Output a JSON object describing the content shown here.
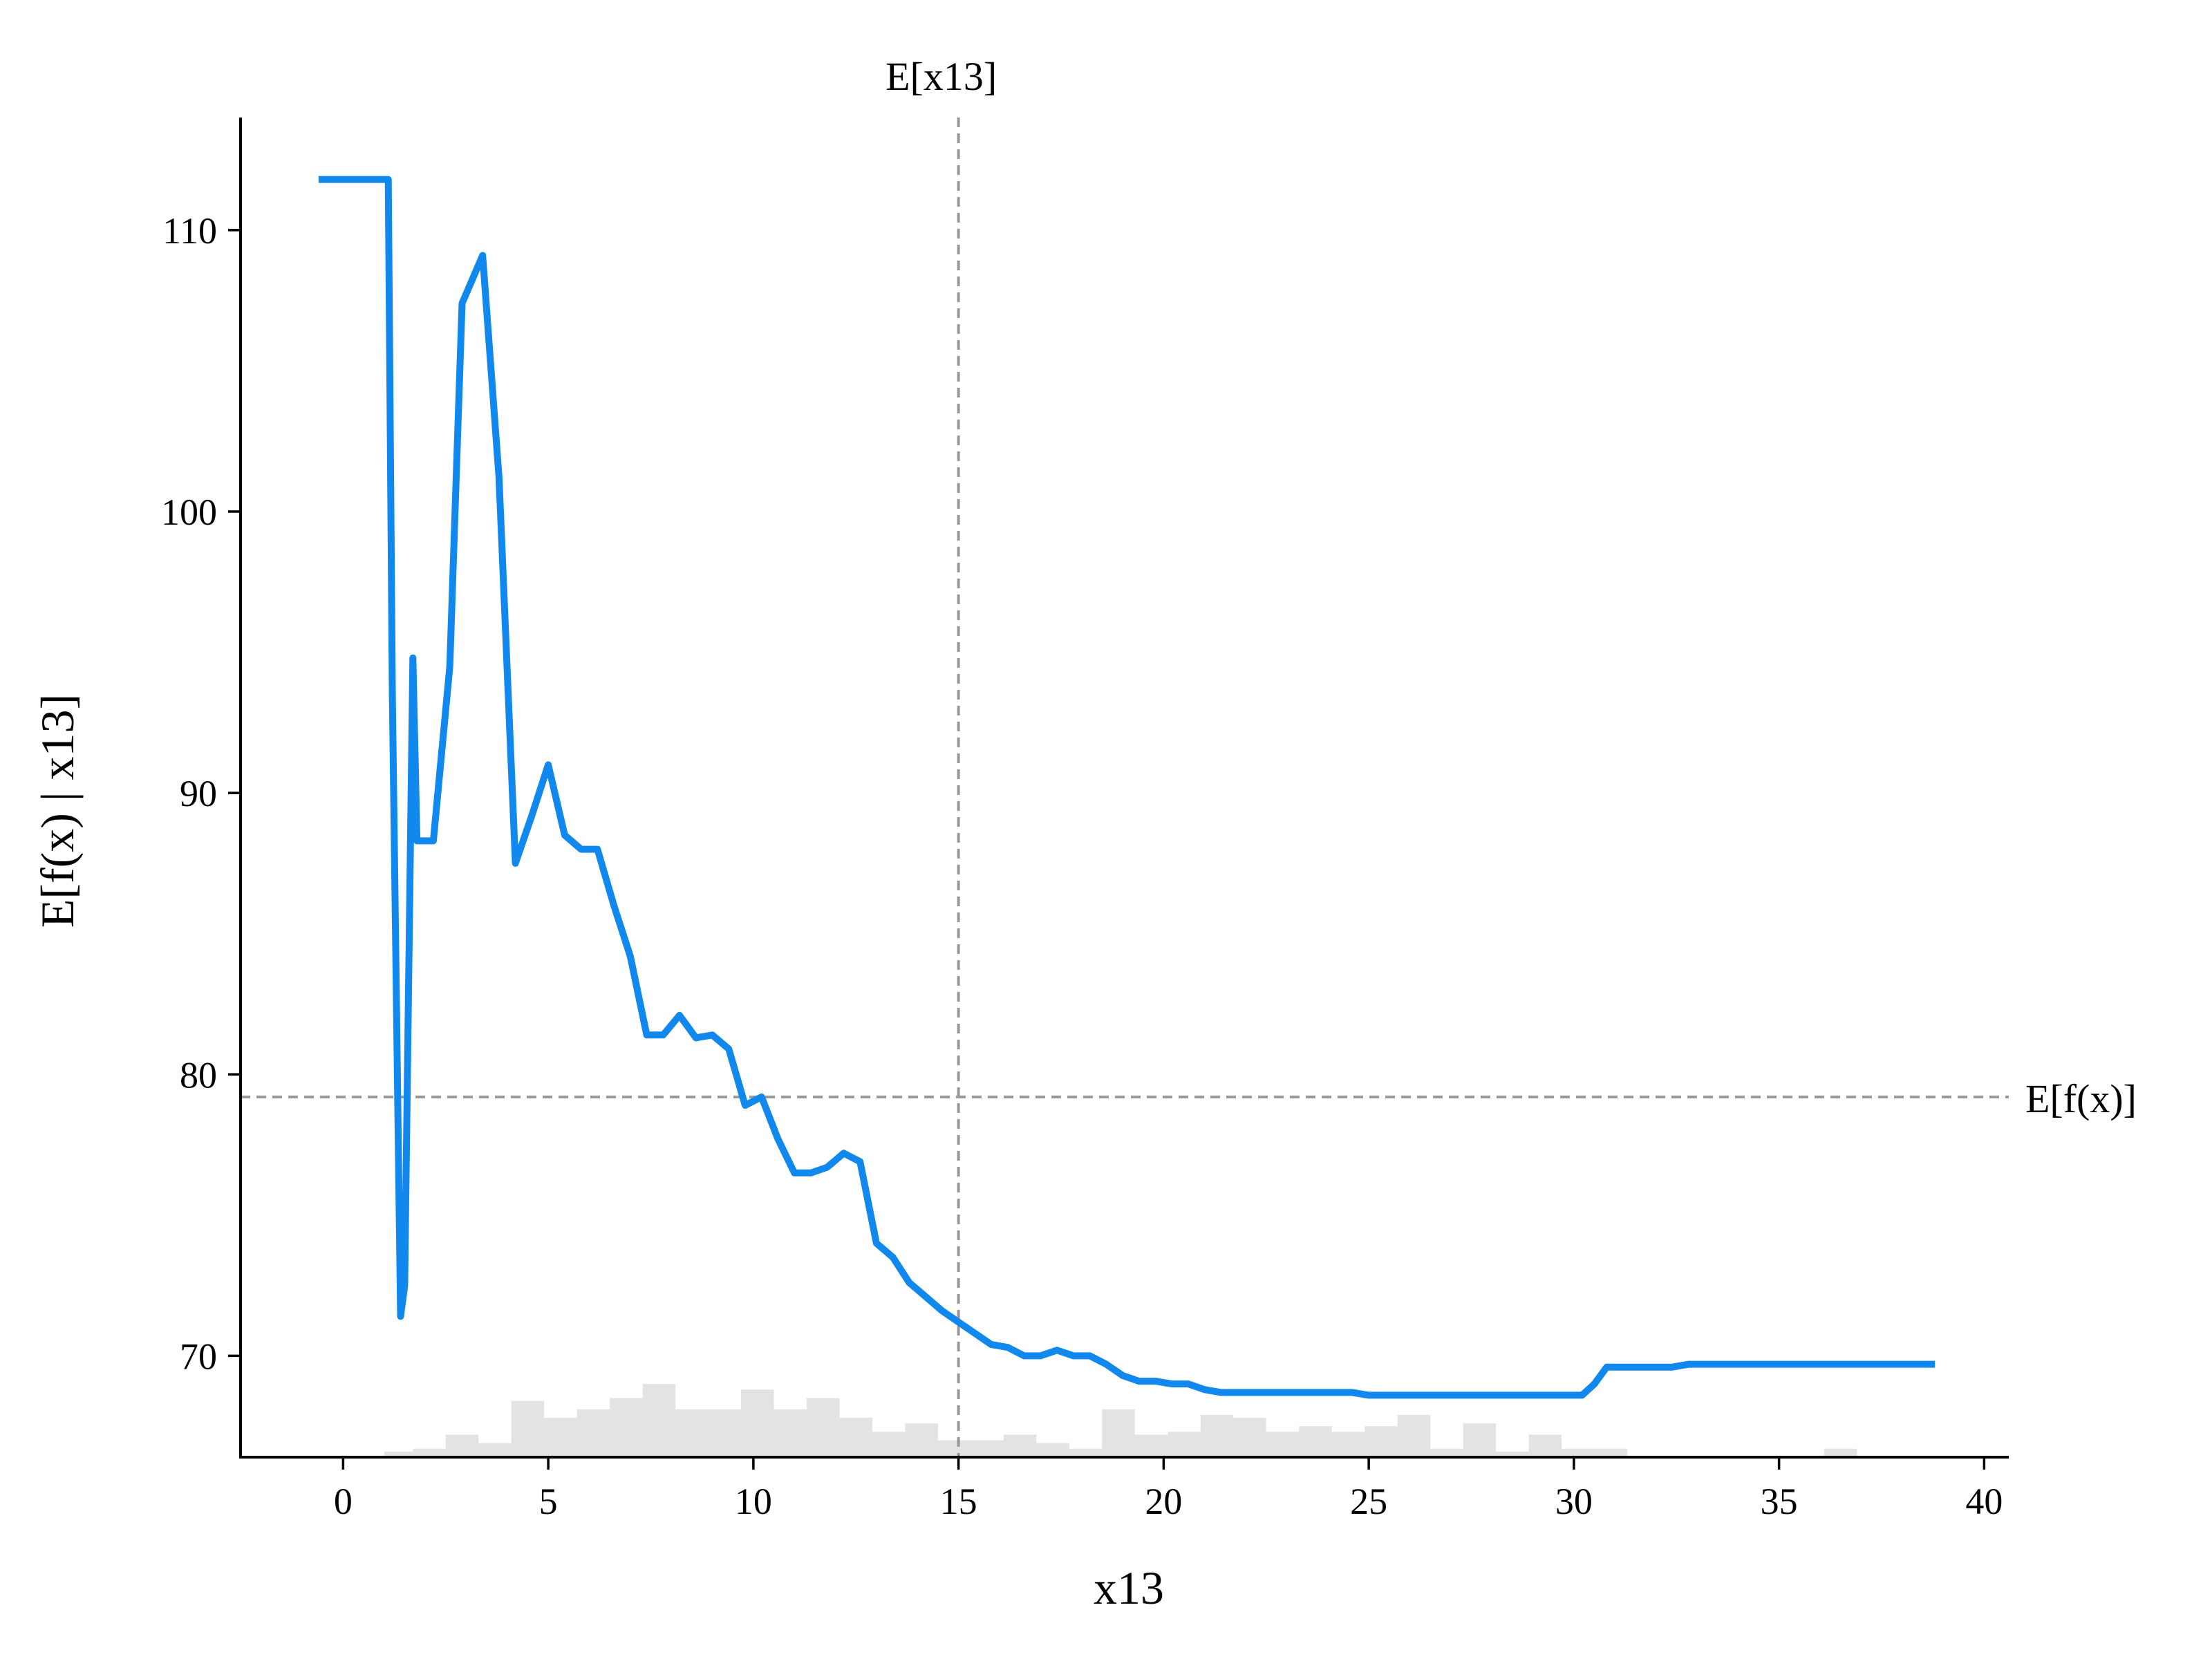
{
  "chart_data": {
    "type": "line",
    "xlabel": "x13",
    "ylabel": "E[f(x) | x13]",
    "xlim": [
      -2.5,
      40.6
    ],
    "ylim": [
      66.4,
      114.0
    ],
    "xticks": [
      0,
      5,
      10,
      15,
      20,
      25,
      30,
      35,
      40
    ],
    "xtick_labels": [
      "0",
      "5",
      "10",
      "15",
      "20",
      "25",
      "30",
      "35",
      "40"
    ],
    "yticks": [
      70,
      80,
      90,
      100,
      110
    ],
    "ytick_labels": [
      "70",
      "80",
      "90",
      "100",
      "110"
    ],
    "grid": false,
    "colors": {
      "line": "#1188ee",
      "reference": "#999999",
      "histogram": "#e3e3e3",
      "axis": "#000000"
    },
    "series": [
      {
        "x": [
          -0.6,
          0.0,
          0.5,
          1.0,
          1.1,
          1.2,
          1.4,
          1.5,
          1.7,
          1.8,
          2.2,
          2.6,
          2.9,
          3.4,
          3.8,
          4.2,
          4.6,
          5.0,
          5.4,
          5.8,
          6.2,
          6.6,
          7.0,
          7.4,
          7.8,
          8.2,
          8.6,
          9.0,
          9.4,
          9.8,
          10.2,
          10.6,
          11.0,
          11.4,
          11.8,
          12.2,
          12.6,
          13.0,
          13.4,
          13.8,
          14.2,
          14.6,
          15.0,
          15.4,
          15.8,
          16.2,
          16.6,
          17.0,
          17.4,
          17.8,
          18.2,
          18.6,
          19.0,
          19.4,
          19.8,
          20.2,
          20.6,
          21.0,
          21.4,
          21.8,
          22.2,
          22.6,
          23.0,
          23.4,
          23.8,
          24.2,
          24.6,
          25.0,
          25.4,
          25.8,
          26.2,
          26.6,
          27.0,
          27.4,
          27.8,
          28.2,
          28.6,
          29.0,
          29.4,
          29.8,
          30.2,
          30.5,
          30.8,
          31.2,
          31.6,
          32.0,
          32.4,
          32.8,
          33.2,
          33.6,
          34.0,
          34.4,
          34.8,
          35.2,
          35.6,
          36.0,
          36.4,
          36.8,
          37.2,
          37.6,
          38.0,
          38.4,
          38.8
        ],
        "y": [
          111.8,
          111.8,
          111.8,
          111.8,
          111.8,
          93.5,
          71.4,
          72.5,
          94.8,
          88.3,
          88.3,
          94.5,
          107.4,
          109.1,
          101.2,
          87.5,
          89.2,
          91.0,
          88.5,
          88.0,
          88.0,
          86.0,
          84.2,
          81.4,
          81.4,
          82.1,
          81.3,
          81.4,
          80.9,
          78.9,
          79.2,
          77.7,
          76.5,
          76.5,
          76.7,
          77.2,
          76.9,
          74.0,
          73.5,
          72.6,
          72.1,
          71.6,
          71.2,
          70.8,
          70.4,
          70.3,
          70.0,
          70.0,
          70.2,
          70.0,
          70.0,
          69.7,
          69.3,
          69.1,
          69.1,
          69.0,
          69.0,
          68.8,
          68.7,
          68.7,
          68.7,
          68.7,
          68.7,
          68.7,
          68.7,
          68.7,
          68.7,
          68.6,
          68.6,
          68.6,
          68.6,
          68.6,
          68.6,
          68.6,
          68.6,
          68.6,
          68.6,
          68.6,
          68.6,
          68.6,
          68.6,
          69.0,
          69.6,
          69.6,
          69.6,
          69.6,
          69.6,
          69.7,
          69.7,
          69.7,
          69.7,
          69.7,
          69.7,
          69.7,
          69.7,
          69.7,
          69.7,
          69.7,
          69.7,
          69.7,
          69.7,
          69.7,
          69.7
        ]
      }
    ],
    "histogram": {
      "bins": [
        1.0,
        1.7,
        2.5,
        3.3,
        4.1,
        4.9,
        5.7,
        6.5,
        7.3,
        8.1,
        8.9,
        9.7,
        10.5,
        11.3,
        12.1,
        12.9,
        13.7,
        14.5,
        15.3,
        16.1,
        16.9,
        17.7,
        18.5,
        19.3,
        20.1,
        20.9,
        21.7,
        22.5,
        23.3,
        24.1,
        24.9,
        25.7,
        26.5,
        27.3,
        28.1,
        28.9,
        29.7,
        30.5,
        31.3,
        32.1,
        32.9,
        33.7,
        34.5,
        35.3,
        36.1,
        36.9,
        37.7
      ],
      "heights": [
        0.2,
        0.3,
        0.8,
        0.5,
        2.0,
        1.4,
        1.7,
        2.1,
        2.6,
        1.7,
        1.7,
        2.4,
        1.7,
        2.1,
        1.4,
        0.9,
        1.2,
        0.6,
        0.6,
        0.8,
        0.5,
        0.3,
        1.7,
        0.8,
        0.9,
        1.5,
        1.4,
        0.9,
        1.1,
        0.9,
        1.1,
        1.5,
        0.3,
        1.2,
        0.2,
        0.8,
        0.3,
        0.3,
        0,
        0,
        0,
        0,
        0,
        0,
        0.3,
        0,
        0
      ]
    },
    "reference_lines": {
      "vertical": {
        "x": 15.0,
        "label": "E[x13]"
      },
      "horizontal": {
        "y": 79.2,
        "label": "E[f(x)]"
      }
    }
  }
}
